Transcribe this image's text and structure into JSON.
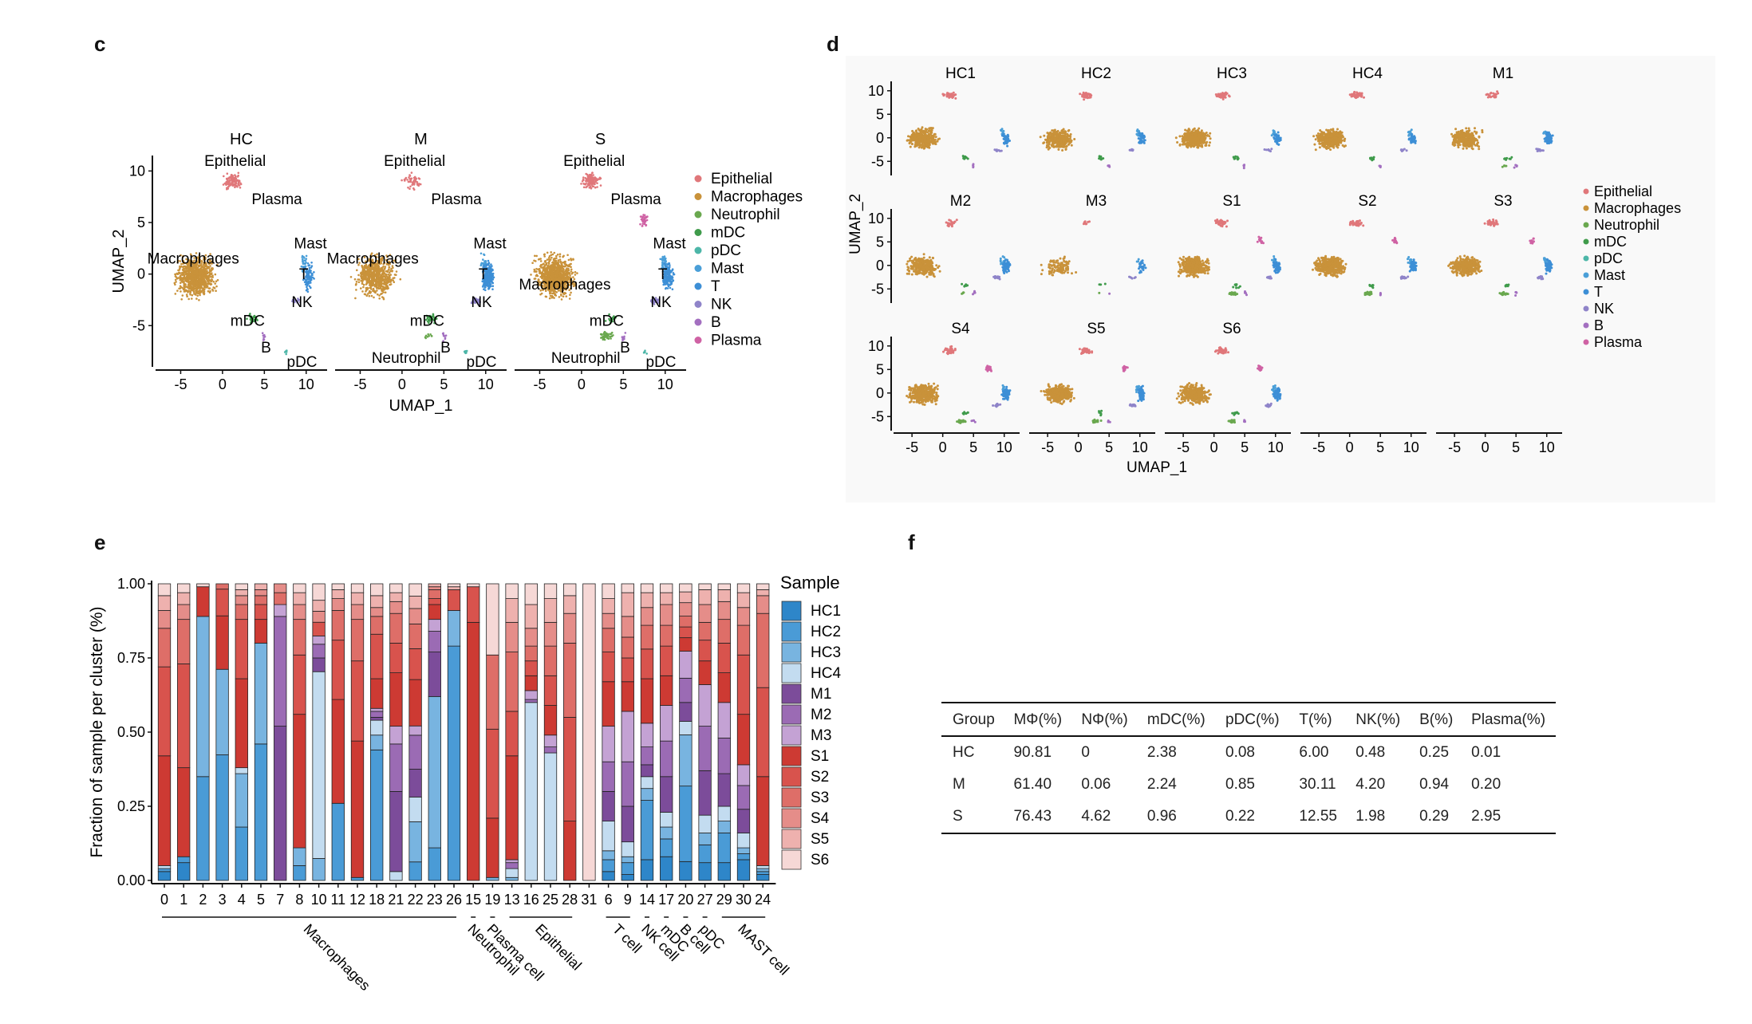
{
  "panels": {
    "c": "c",
    "d": "d",
    "e": "e",
    "f": "f"
  },
  "colors": {
    "Epithelial": "#e0777a",
    "Macrophages": "#c9923a",
    "Neutrophil": "#6aa84f",
    "mDC": "#3f9b4b",
    "pDC": "#4cb6a8",
    "Mast": "#4a9fd8",
    "T": "#3d8fd6",
    "NK": "#8f84c9",
    "B": "#a36fc0",
    "Plasma": "#cf62a4"
  },
  "legend_cell_types": [
    "Epithelial",
    "Macrophages",
    "Neutrophil",
    "mDC",
    "pDC",
    "Mast",
    "T",
    "NK",
    "B",
    "Plasma"
  ],
  "panel_c": {
    "facets": [
      "HC",
      "M",
      "S"
    ],
    "xlabel": "UMAP_1",
    "ylabel": "UMAP_2",
    "xticks": [
      "-5",
      "0",
      "5",
      "10"
    ],
    "yticks": [
      "10",
      "5",
      "0",
      "-5"
    ],
    "cluster_labels": [
      [
        "Epithelial",
        "Plasma",
        "Mast",
        "Macrophages",
        "T",
        "NK",
        "mDC",
        "B",
        "pDC"
      ],
      [
        "Epithelial",
        "Plasma",
        "Mast",
        "Macrophages",
        "T",
        "NK",
        "mDC",
        "B",
        "Neutrophil",
        "pDC"
      ],
      [
        "Epithelial",
        "Plasma",
        "Mast",
        "T",
        "Macrophages",
        "NK",
        "mDC",
        "B",
        "Neutrophil",
        "pDC"
      ]
    ]
  },
  "panel_d": {
    "facets": [
      "HC1",
      "HC2",
      "HC3",
      "HC4",
      "M1",
      "M2",
      "M3",
      "S1",
      "S2",
      "S3",
      "S4",
      "S5",
      "S6"
    ],
    "xlabel": "UMAP_1",
    "ylabel": "UMAP_2",
    "xticks": [
      "-5",
      "0",
      "5",
      "10"
    ],
    "yticks": [
      "10",
      "5",
      "0",
      "-5"
    ]
  },
  "chart_data": {
    "type": "bar",
    "stacked": true,
    "ylabel": "Fraction of sample per cluster (%)",
    "ylim": [
      0,
      1
    ],
    "yticks": [
      "0.00",
      "0.25",
      "0.50",
      "0.75",
      "1.00"
    ],
    "legend_title": "Sample",
    "categories": [
      "0",
      "1",
      "2",
      "3",
      "4",
      "5",
      "7",
      "8",
      "10",
      "11",
      "12",
      "18",
      "21",
      "22",
      "23",
      "26",
      "15",
      "19",
      "13",
      "16",
      "25",
      "28",
      "31",
      "6",
      "9",
      "14",
      "17",
      "20",
      "27",
      "29",
      "30",
      "24"
    ],
    "groups": [
      {
        "name": "Macrophages",
        "start": 0,
        "end": 15
      },
      {
        "name": "Neutrophil",
        "start": 16,
        "end": 16
      },
      {
        "name": "Plasma cell",
        "start": 17,
        "end": 17
      },
      {
        "name": "Epithelial",
        "start": 18,
        "end": 21
      },
      {
        "name": "T cell",
        "start": 23,
        "end": 24
      },
      {
        "name": "NK cell",
        "start": 25,
        "end": 25
      },
      {
        "name": "mDC",
        "start": 26,
        "end": 26
      },
      {
        "name": "B cell",
        "start": 27,
        "end": 27
      },
      {
        "name": "pDC",
        "start": 28,
        "end": 28
      },
      {
        "name": "MAST cell",
        "start": 29,
        "end": 31
      }
    ],
    "series_colors": [
      "#2e86c9",
      "#4a9bd6",
      "#78b4e0",
      "#c3dcf0",
      "#7c4c9a",
      "#9b6bb4",
      "#c4a2d4",
      "#cd3a33",
      "#d8534d",
      "#de6e68",
      "#e58d89",
      "#eeb1ae",
      "#f6d8d6"
    ],
    "series": [
      {
        "name": "HC1",
        "values": [
          0.03,
          0.06,
          0.0,
          0.0,
          0.0,
          0.0,
          0.0,
          0.0,
          0.0,
          0.0,
          0.0,
          0.0,
          0.0,
          0.0,
          0.0,
          0.0,
          0.0,
          0.0,
          0.0,
          0.0,
          0.0,
          0.0,
          0.0,
          0.03,
          0.02,
          0.07,
          0.08,
          0.07,
          0.06,
          0.06,
          0.07,
          0.02
        ]
      },
      {
        "name": "HC2",
        "values": [
          0.01,
          0.02,
          0.35,
          0.47,
          0.18,
          0.46,
          0.0,
          0.05,
          0.0,
          0.26,
          0.01,
          0.44,
          0.0,
          0.06,
          0.11,
          0.79,
          0.0,
          0.0,
          0.0,
          0.0,
          0.0,
          0.0,
          0.0,
          0.04,
          0.04,
          0.2,
          0.06,
          0.28,
          0.06,
          0.1,
          0.02,
          0.01
        ]
      },
      {
        "name": "HC3",
        "values": [
          0.0,
          0.0,
          0.54,
          0.32,
          0.18,
          0.34,
          0.0,
          0.06,
          0.08,
          0.0,
          0.0,
          0.05,
          0.0,
          0.13,
          0.51,
          0.12,
          0.0,
          0.01,
          0.01,
          0.0,
          0.0,
          0.0,
          0.0,
          0.03,
          0.02,
          0.04,
          0.04,
          0.19,
          0.04,
          0.04,
          0.02,
          0.01
        ]
      },
      {
        "name": "HC4",
        "values": [
          0.01,
          0.0,
          0.0,
          0.0,
          0.02,
          0.0,
          0.0,
          0.0,
          0.68,
          0.0,
          0.0,
          0.05,
          0.03,
          0.08,
          0.0,
          0.0,
          0.0,
          0.0,
          0.03,
          0.6,
          0.43,
          0.0,
          0.0,
          0.1,
          0.05,
          0.04,
          0.05,
          0.05,
          0.06,
          0.05,
          0.05,
          0.01
        ]
      },
      {
        "name": "M1",
        "values": [
          0.0,
          0.0,
          0.0,
          0.0,
          0.0,
          0.0,
          0.52,
          0.0,
          0.05,
          0.0,
          0.0,
          0.01,
          0.27,
          0.09,
          0.15,
          0.0,
          0.0,
          0.0,
          0.0,
          0.0,
          0.0,
          0.0,
          0.0,
          0.1,
          0.12,
          0.04,
          0.12,
          0.07,
          0.15,
          0.11,
          0.08,
          0.0
        ]
      },
      {
        "name": "M2",
        "values": [
          0.0,
          0.0,
          0.0,
          0.0,
          0.0,
          0.0,
          0.37,
          0.0,
          0.05,
          0.0,
          0.0,
          0.02,
          0.16,
          0.11,
          0.07,
          0.0,
          0.0,
          0.0,
          0.02,
          0.01,
          0.02,
          0.0,
          0.0,
          0.1,
          0.15,
          0.06,
          0.12,
          0.09,
          0.15,
          0.12,
          0.08,
          0.0
        ]
      },
      {
        "name": "M3",
        "values": [
          0.0,
          0.0,
          0.0,
          0.0,
          0.0,
          0.0,
          0.04,
          0.0,
          0.03,
          0.0,
          0.0,
          0.01,
          0.06,
          0.03,
          0.04,
          0.0,
          0.0,
          0.0,
          0.01,
          0.03,
          0.04,
          0.0,
          0.0,
          0.12,
          0.17,
          0.08,
          0.12,
          0.1,
          0.14,
          0.12,
          0.07,
          0.0
        ]
      },
      {
        "name": "S1",
        "values": [
          0.37,
          0.3,
          0.1,
          0.2,
          0.3,
          0.08,
          0.0,
          0.45,
          0.0,
          0.35,
          0.46,
          0.1,
          0.18,
          0.15,
          0.05,
          0.0,
          0.87,
          0.2,
          0.35,
          0.05,
          0.1,
          0.2,
          0.0,
          0.15,
          0.1,
          0.15,
          0.1,
          0.05,
          0.08,
          0.1,
          0.17,
          0.3
        ]
      },
      {
        "name": "S2",
        "values": [
          0.3,
          0.35,
          0.0,
          0.1,
          0.2,
          0.05,
          0.0,
          0.2,
          0.05,
          0.2,
          0.27,
          0.15,
          0.1,
          0.1,
          0.02,
          0.07,
          0.12,
          0.3,
          0.15,
          0.05,
          0.1,
          0.35,
          0.0,
          0.1,
          0.08,
          0.1,
          0.1,
          0.04,
          0.07,
          0.1,
          0.2,
          0.3
        ]
      },
      {
        "name": "S3",
        "values": [
          0.13,
          0.15,
          0.0,
          0.02,
          0.05,
          0.03,
          0.04,
          0.12,
          0.0,
          0.1,
          0.14,
          0.06,
          0.1,
          0.08,
          0.03,
          0.0,
          0.0,
          0.25,
          0.2,
          0.05,
          0.1,
          0.25,
          0.0,
          0.08,
          0.07,
          0.08,
          0.07,
          0.04,
          0.06,
          0.08,
          0.1,
          0.25
        ]
      },
      {
        "name": "S4",
        "values": [
          0.06,
          0.05,
          0.0,
          0.0,
          0.03,
          0.02,
          0.03,
          0.05,
          0.04,
          0.04,
          0.05,
          0.03,
          0.04,
          0.05,
          0.01,
          0.0,
          0.0,
          0.0,
          0.1,
          0.06,
          0.08,
          0.1,
          0.0,
          0.05,
          0.07,
          0.06,
          0.07,
          0.05,
          0.06,
          0.06,
          0.06,
          0.06
        ]
      },
      {
        "name": "S5",
        "values": [
          0.05,
          0.04,
          0.0,
          0.0,
          0.02,
          0.02,
          0.0,
          0.04,
          0.04,
          0.03,
          0.04,
          0.04,
          0.03,
          0.04,
          0.01,
          0.01,
          0.0,
          0.0,
          0.08,
          0.08,
          0.08,
          0.06,
          0.0,
          0.05,
          0.08,
          0.05,
          0.04,
          0.04,
          0.05,
          0.04,
          0.05,
          0.02
        ]
      },
      {
        "name": "S6",
        "values": [
          0.04,
          0.03,
          0.01,
          0.0,
          0.02,
          0.0,
          0.0,
          0.03,
          0.06,
          0.02,
          0.03,
          0.04,
          0.03,
          0.04,
          0.0,
          0.01,
          0.01,
          0.24,
          0.05,
          0.07,
          0.05,
          0.04,
          1.0,
          0.05,
          0.03,
          0.03,
          0.03,
          0.03,
          0.02,
          0.02,
          0.03,
          0.02
        ]
      }
    ]
  },
  "table": {
    "headers": [
      "Group",
      "MΦ(%)",
      "NΦ(%)",
      "mDC(%)",
      "pDC(%)",
      "T(%)",
      "NK(%)",
      "B(%)",
      "Plasma(%)"
    ],
    "rows": [
      [
        "HC",
        "90.81",
        "0",
        "2.38",
        "0.08",
        "6.00",
        "0.48",
        "0.25",
        "0.01"
      ],
      [
        "M",
        "61.40",
        "0.06",
        "2.24",
        "0.85",
        "30.11",
        "4.20",
        "0.94",
        "0.20"
      ],
      [
        "S",
        "76.43",
        "4.62",
        "0.96",
        "0.22",
        "12.55",
        "1.98",
        "0.29",
        "2.95"
      ]
    ]
  }
}
